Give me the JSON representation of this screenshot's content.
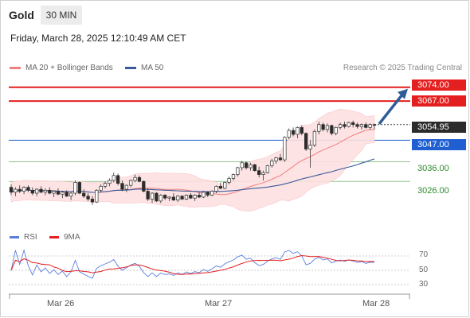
{
  "header": {
    "instrument": "Gold",
    "timeframe": "30 MIN",
    "datetime": "Friday, March 28, 2025 12:10:49 AM CET"
  },
  "legend": {
    "ma20_label": "MA 20 + Bollinger Bands",
    "ma50_label": "MA 50",
    "copyright": "Research © 2025 Trading Central"
  },
  "colors": {
    "resistance": "#e41f1f",
    "pivot": "#1f5fd1",
    "support": "#2c8a2c",
    "bollinger_fill": "#fde0e0",
    "ma20": "#f08080",
    "ma50": "#3a5a9a",
    "rsi": "#5b7fe0",
    "rsi_ma": "#e41f1f",
    "arrow": "#2e5c99"
  },
  "price_levels": {
    "r2": "3074.00",
    "r1": "3067.00",
    "last": "3054.95",
    "pivot": "3047.00",
    "s1": "3036.00",
    "s2": "3026.00"
  },
  "rsi_panel": {
    "rsi_label": "RSI",
    "ma_label": "9MA",
    "ticks": [
      "70",
      "50",
      "30"
    ]
  },
  "x_axis": {
    "ticks": [
      "Mar 26",
      "Mar 27",
      "Mar 28"
    ]
  },
  "chart_data": {
    "type": "candlestick",
    "instrument": "Gold",
    "interval": "30 MIN",
    "y_range": [
      3005,
      3080
    ],
    "levels": {
      "r2": 3074.0,
      "r1": 3067.0,
      "pivot": 3047.0,
      "s1": 3036.0,
      "s2": 3026.0,
      "last": 3054.95
    },
    "candles": [
      [
        3023.0,
        3024.5,
        3019.0,
        3020.5
      ],
      [
        3020.5,
        3023.0,
        3018.5,
        3022.0
      ],
      [
        3022.0,
        3024.0,
        3020.0,
        3021.0
      ],
      [
        3021.0,
        3023.5,
        3019.5,
        3023.0
      ],
      [
        3023.0,
        3024.0,
        3020.5,
        3021.5
      ],
      [
        3021.5,
        3023.0,
        3019.0,
        3020.0
      ],
      [
        3020.0,
        3022.5,
        3018.5,
        3022.0
      ],
      [
        3022.0,
        3023.5,
        3020.0,
        3020.5
      ],
      [
        3020.5,
        3022.5,
        3019.0,
        3021.5
      ],
      [
        3021.5,
        3023.0,
        3019.5,
        3020.0
      ],
      [
        3020.0,
        3021.5,
        3018.0,
        3021.0
      ],
      [
        3021.0,
        3022.5,
        3019.0,
        3019.5
      ],
      [
        3019.5,
        3021.0,
        3017.5,
        3020.5
      ],
      [
        3020.5,
        3021.5,
        3018.0,
        3018.5
      ],
      [
        3018.5,
        3020.5,
        3016.5,
        3020.0
      ],
      [
        3020.0,
        3026.5,
        3019.0,
        3025.5
      ],
      [
        3025.5,
        3026.0,
        3019.5,
        3020.0
      ],
      [
        3020.0,
        3022.0,
        3017.5,
        3018.5
      ],
      [
        3018.5,
        3020.0,
        3016.0,
        3017.0
      ],
      [
        3017.0,
        3018.5,
        3014.0,
        3015.5
      ],
      [
        3015.5,
        3022.0,
        3015.0,
        3021.5
      ],
      [
        3021.5,
        3024.5,
        3020.5,
        3023.5
      ],
      [
        3023.5,
        3026.0,
        3022.5,
        3025.0
      ],
      [
        3025.0,
        3027.5,
        3023.5,
        3026.5
      ],
      [
        3026.5,
        3030.5,
        3025.5,
        3029.0
      ],
      [
        3029.0,
        3030.0,
        3024.0,
        3025.0
      ],
      [
        3025.0,
        3026.5,
        3021.0,
        3022.0
      ],
      [
        3022.0,
        3024.5,
        3020.5,
        3024.0
      ],
      [
        3024.0,
        3027.0,
        3023.0,
        3026.5
      ],
      [
        3026.5,
        3029.5,
        3025.5,
        3028.0
      ],
      [
        3028.0,
        3029.0,
        3025.5,
        3026.0
      ],
      [
        3026.0,
        3026.5,
        3020.5,
        3021.0
      ],
      [
        3021.0,
        3022.5,
        3016.0,
        3017.0
      ],
      [
        3017.0,
        3020.5,
        3015.0,
        3020.0
      ],
      [
        3020.0,
        3020.5,
        3015.5,
        3016.0
      ],
      [
        3016.0,
        3019.5,
        3015.0,
        3019.0
      ],
      [
        3019.0,
        3019.5,
        3016.5,
        3017.5
      ],
      [
        3017.5,
        3018.5,
        3016.0,
        3018.0
      ],
      [
        3018.0,
        3020.0,
        3016.0,
        3016.5
      ],
      [
        3016.5,
        3019.0,
        3015.5,
        3018.5
      ],
      [
        3018.5,
        3019.0,
        3016.5,
        3017.0
      ],
      [
        3017.0,
        3019.5,
        3016.5,
        3019.0
      ],
      [
        3019.0,
        3020.0,
        3017.0,
        3017.5
      ],
      [
        3017.5,
        3019.5,
        3016.0,
        3019.0
      ],
      [
        3019.0,
        3020.5,
        3017.5,
        3018.0
      ],
      [
        3018.0,
        3021.0,
        3017.5,
        3020.5
      ],
      [
        3020.5,
        3021.0,
        3018.0,
        3019.0
      ],
      [
        3019.0,
        3021.5,
        3018.5,
        3021.0
      ],
      [
        3021.0,
        3024.0,
        3020.0,
        3023.5
      ],
      [
        3023.5,
        3025.5,
        3022.0,
        3022.5
      ],
      [
        3022.5,
        3026.0,
        3022.0,
        3025.5
      ],
      [
        3025.5,
        3028.5,
        3024.5,
        3027.5
      ],
      [
        3027.5,
        3030.0,
        3026.5,
        3029.5
      ],
      [
        3029.5,
        3033.5,
        3028.5,
        3033.0
      ],
      [
        3033.0,
        3036.5,
        3031.5,
        3035.5
      ],
      [
        3035.5,
        3036.0,
        3032.0,
        3033.0
      ],
      [
        3033.0,
        3035.5,
        3031.5,
        3034.5
      ],
      [
        3034.5,
        3035.0,
        3031.0,
        3031.5
      ],
      [
        3031.5,
        3033.5,
        3028.0,
        3029.5
      ],
      [
        3029.5,
        3031.5,
        3026.5,
        3030.5
      ],
      [
        3030.5,
        3034.5,
        3030.0,
        3034.0
      ],
      [
        3034.0,
        3037.5,
        3033.0,
        3036.5
      ],
      [
        3036.5,
        3038.5,
        3035.0,
        3038.0
      ],
      [
        3038.0,
        3040.0,
        3036.5,
        3037.0
      ],
      [
        3037.0,
        3049.0,
        3036.0,
        3048.5
      ],
      [
        3048.5,
        3053.0,
        3047.5,
        3052.0
      ],
      [
        3052.0,
        3053.5,
        3049.0,
        3050.0
      ],
      [
        3050.0,
        3054.0,
        3048.0,
        3053.5
      ],
      [
        3053.5,
        3054.5,
        3049.5,
        3050.5
      ],
      [
        3050.5,
        3051.0,
        3041.5,
        3042.5
      ],
      [
        3042.5,
        3047.0,
        3033.0,
        3044.5
      ],
      [
        3044.5,
        3052.5,
        3043.5,
        3051.5
      ],
      [
        3051.5,
        3056.5,
        3050.0,
        3055.0
      ],
      [
        3055.0,
        3056.0,
        3051.5,
        3052.5
      ],
      [
        3052.5,
        3055.5,
        3051.0,
        3054.5
      ],
      [
        3054.5,
        3055.0,
        3049.5,
        3050.5
      ],
      [
        3050.5,
        3054.0,
        3049.5,
        3053.5
      ],
      [
        3053.5,
        3056.0,
        3052.5,
        3055.0
      ],
      [
        3055.0,
        3056.5,
        3053.0,
        3054.0
      ],
      [
        3054.0,
        3056.5,
        3053.5,
        3056.0
      ],
      [
        3056.0,
        3057.0,
        3053.5,
        3055.0
      ],
      [
        3055.0,
        3056.0,
        3053.0,
        3054.0
      ],
      [
        3054.0,
        3055.5,
        3052.5,
        3055.0
      ],
      [
        3055.0,
        3056.0,
        3053.0,
        3053.5
      ],
      [
        3053.5,
        3055.5,
        3052.5,
        3055.0
      ],
      [
        3055.0,
        3055.5,
        3052.5,
        3054.95
      ]
    ],
    "rsi": {
      "range": [
        20,
        80
      ],
      "ticks": [
        70,
        50,
        30
      ]
    },
    "x_ticks": [
      "Mar 26",
      "Mar 27",
      "Mar 28"
    ],
    "series_labels": [
      "MA 20 + Bollinger Bands",
      "MA 50",
      "RSI",
      "9MA"
    ]
  }
}
